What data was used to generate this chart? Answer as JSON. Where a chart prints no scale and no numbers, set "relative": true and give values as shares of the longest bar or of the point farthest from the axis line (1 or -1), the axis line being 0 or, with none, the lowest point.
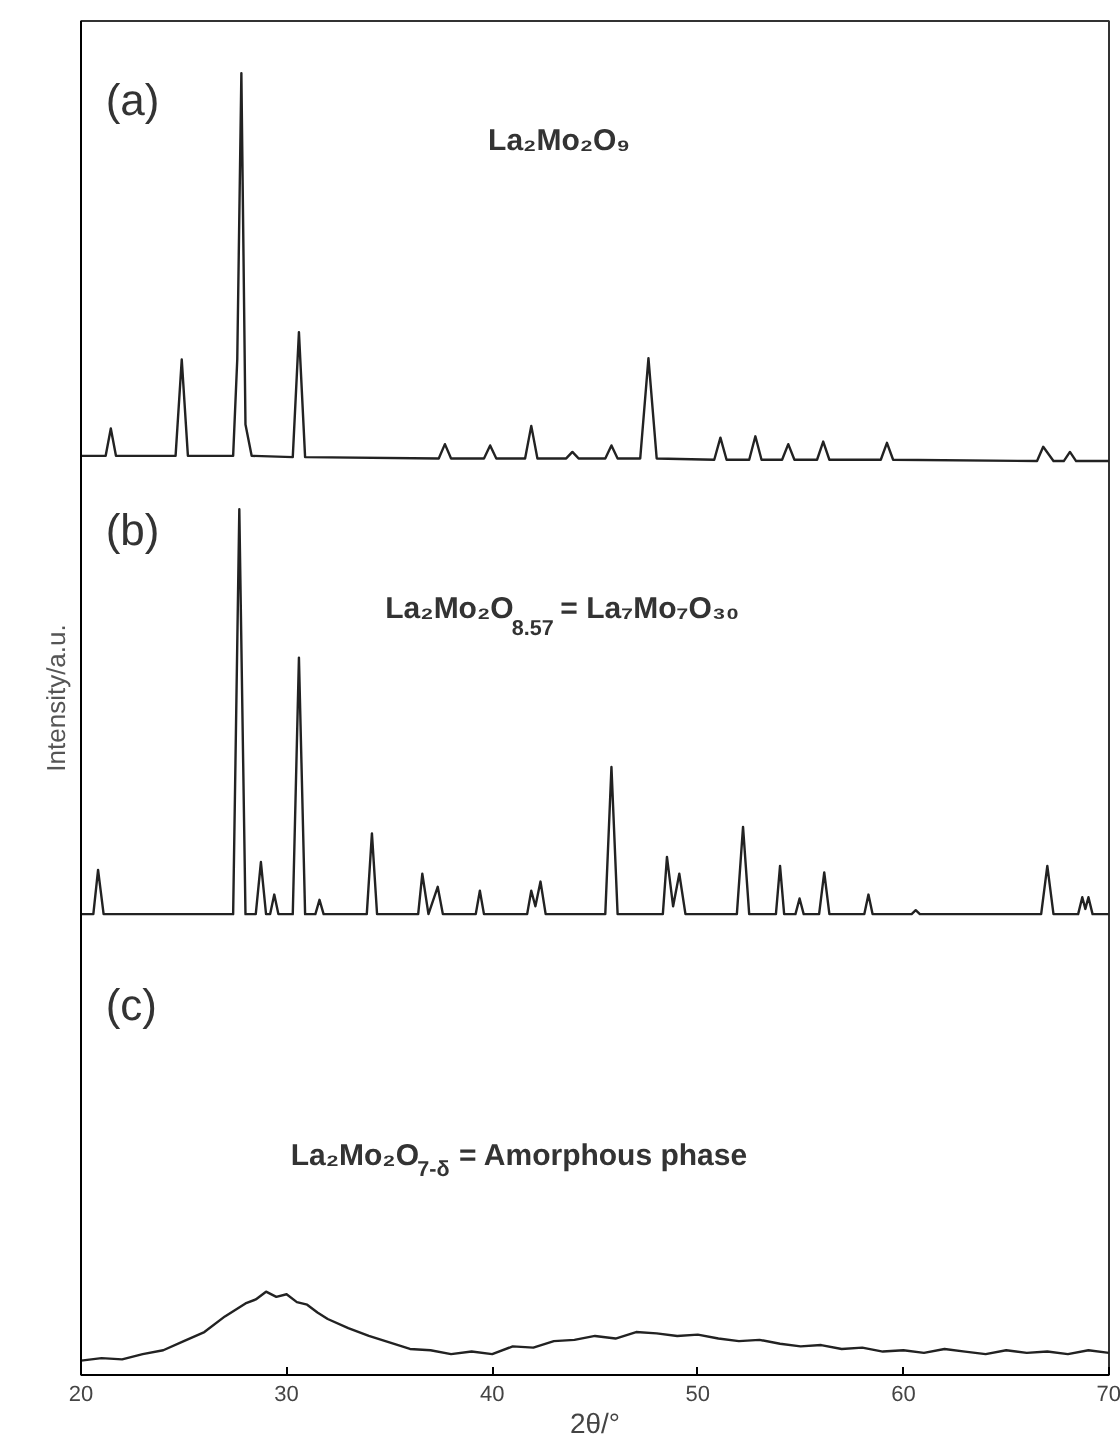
{
  "chart_data": {
    "type": "line",
    "relative": true,
    "xlabel": "2θ/°",
    "ylabel": "Intensity/a.u.",
    "xlim": [
      20,
      70
    ],
    "xticks": [
      20,
      30,
      40,
      50,
      60,
      70
    ],
    "grid": false,
    "marker": "none",
    "line_style": "solid",
    "annotations": [
      "(a)",
      "La₂Mo₂O₉",
      "(b)",
      "La₂Mo₂O$_{8.57}$ = La₇Mo₇O₃₀",
      "(c)",
      "La₂Mo₂O$_{7-δ}$ = Amorphous phase"
    ],
    "series": [
      {
        "color": "#222222",
        "x": [
          20,
          21.2,
          21.45,
          21.7,
          24.6,
          24.9,
          25.2,
          27.4,
          27.6,
          27.8,
          28.0,
          28.3,
          30.3,
          30.6,
          30.9,
          37.4,
          37.7,
          38.0,
          39.6,
          39.9,
          40.2,
          41.6,
          41.9,
          42.2,
          43.6,
          43.9,
          44.2,
          45.5,
          45.8,
          46.1,
          47.2,
          47.6,
          48.0,
          50.8,
          51.1,
          51.4,
          52.5,
          52.8,
          53.1,
          54.1,
          54.4,
          54.7,
          55.8,
          56.1,
          56.4,
          58.9,
          59.2,
          59.5,
          66.5,
          66.8,
          67.3,
          67.8,
          68.1,
          68.4,
          70
        ],
        "values": [
          0.706,
          0.706,
          0.727,
          0.706,
          0.706,
          0.78,
          0.706,
          0.706,
          0.78,
          1.0,
          0.73,
          0.706,
          0.705,
          0.801,
          0.705,
          0.704,
          0.715,
          0.704,
          0.704,
          0.714,
          0.704,
          0.704,
          0.729,
          0.704,
          0.704,
          0.709,
          0.704,
          0.704,
          0.714,
          0.704,
          0.704,
          0.781,
          0.704,
          0.703,
          0.72,
          0.703,
          0.703,
          0.721,
          0.703,
          0.703,
          0.715,
          0.703,
          0.703,
          0.717,
          0.703,
          0.703,
          0.716,
          0.703,
          0.702,
          0.713,
          0.702,
          0.702,
          0.709,
          0.702,
          0.702
        ]
      },
      {
        "color": "#222222",
        "x": [
          20,
          20.6,
          20.83,
          21.1,
          27.4,
          27.7,
          28.0,
          28.5,
          28.75,
          29.0,
          29.2,
          29.4,
          29.6,
          30.3,
          30.6,
          30.9,
          31.4,
          31.6,
          31.8,
          33.9,
          34.15,
          34.4,
          36.4,
          36.6,
          36.9,
          37.35,
          37.6,
          39.2,
          39.4,
          39.6,
          41.7,
          41.9,
          42.1,
          42.35,
          42.6,
          45.5,
          45.8,
          46.1,
          48.3,
          48.5,
          48.8,
          49.1,
          49.4,
          51.9,
          52.2,
          52.5,
          53.8,
          54.0,
          54.2,
          54.75,
          54.95,
          55.15,
          55.9,
          56.15,
          56.4,
          58.1,
          58.3,
          58.5,
          60.4,
          60.6,
          60.8,
          66.7,
          67.0,
          67.3,
          68.5,
          68.7,
          68.85,
          69.0,
          69.2,
          70
        ],
        "values": [
          0.354,
          0.354,
          0.388,
          0.354,
          0.354,
          0.665,
          0.354,
          0.354,
          0.394,
          0.354,
          0.354,
          0.369,
          0.354,
          0.354,
          0.551,
          0.354,
          0.354,
          0.365,
          0.354,
          0.354,
          0.416,
          0.354,
          0.354,
          0.385,
          0.354,
          0.375,
          0.354,
          0.354,
          0.372,
          0.354,
          0.354,
          0.372,
          0.36,
          0.379,
          0.354,
          0.354,
          0.467,
          0.354,
          0.354,
          0.398,
          0.36,
          0.385,
          0.354,
          0.354,
          0.421,
          0.354,
          0.354,
          0.391,
          0.354,
          0.354,
          0.366,
          0.354,
          0.354,
          0.386,
          0.354,
          0.354,
          0.369,
          0.354,
          0.354,
          0.357,
          0.354,
          0.354,
          0.391,
          0.354,
          0.354,
          0.367,
          0.358,
          0.367,
          0.354,
          0.354
        ]
      },
      {
        "color": "#222222",
        "x": [
          20,
          21,
          22,
          23,
          24,
          25,
          26,
          27,
          27.5,
          28,
          28.5,
          29,
          29.5,
          30,
          30.5,
          31,
          31.5,
          32,
          33,
          34,
          35,
          36,
          37,
          38,
          39,
          40,
          41,
          42,
          43,
          44,
          45,
          46,
          47,
          48,
          49,
          50,
          51,
          52,
          53,
          54,
          55,
          56,
          57,
          58,
          59,
          60,
          61,
          62,
          63,
          64,
          65,
          66,
          67,
          68,
          69,
          70
        ],
        "values": [
          0.011,
          0.013,
          0.012,
          0.016,
          0.019,
          0.026,
          0.033,
          0.045,
          0.05,
          0.055,
          0.058,
          0.064,
          0.06,
          0.062,
          0.056,
          0.054,
          0.048,
          0.043,
          0.036,
          0.03,
          0.025,
          0.02,
          0.019,
          0.016,
          0.018,
          0.016,
          0.022,
          0.021,
          0.026,
          0.027,
          0.03,
          0.028,
          0.033,
          0.032,
          0.03,
          0.031,
          0.028,
          0.026,
          0.027,
          0.024,
          0.022,
          0.023,
          0.02,
          0.021,
          0.018,
          0.019,
          0.017,
          0.02,
          0.018,
          0.016,
          0.019,
          0.017,
          0.018,
          0.016,
          0.019,
          0.017
        ]
      }
    ]
  }
}
